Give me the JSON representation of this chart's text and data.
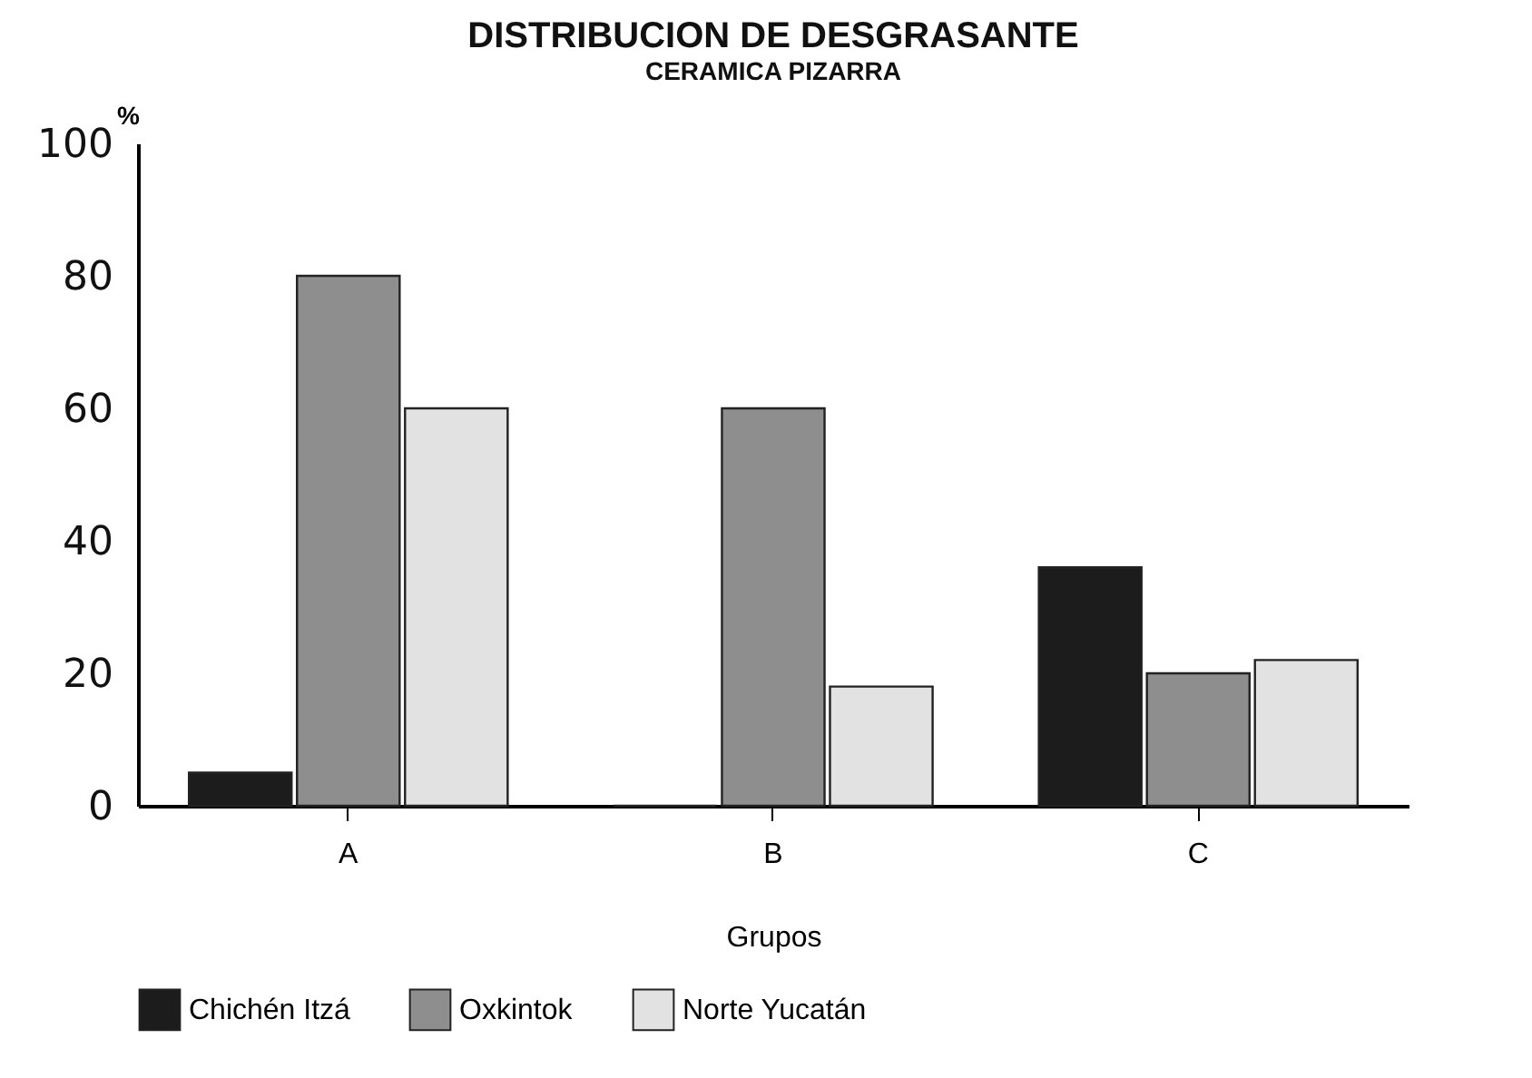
{
  "chart_data": {
    "type": "bar",
    "title": "DISTRIBUCION DE DESGRASANTE",
    "subtitle": "CERAMICA PIZARRA",
    "xlabel": "Grupos",
    "ylabel": "%",
    "categories": [
      "A",
      "B",
      "C"
    ],
    "series": [
      {
        "name": "Chichén Itzá",
        "color": "#1c1c1c",
        "values": [
          5,
          0,
          36
        ]
      },
      {
        "name": "Oxkintok",
        "color": "#8e8e8e",
        "values": [
          80,
          60,
          20
        ]
      },
      {
        "name": "Norte Yucatán",
        "color": "#e2e2e2",
        "values": [
          60,
          18,
          22
        ]
      }
    ],
    "ylim": [
      0,
      100
    ],
    "yticks": [
      0,
      20,
      40,
      60,
      80,
      100
    ],
    "grid": false,
    "legend": "bottom"
  }
}
